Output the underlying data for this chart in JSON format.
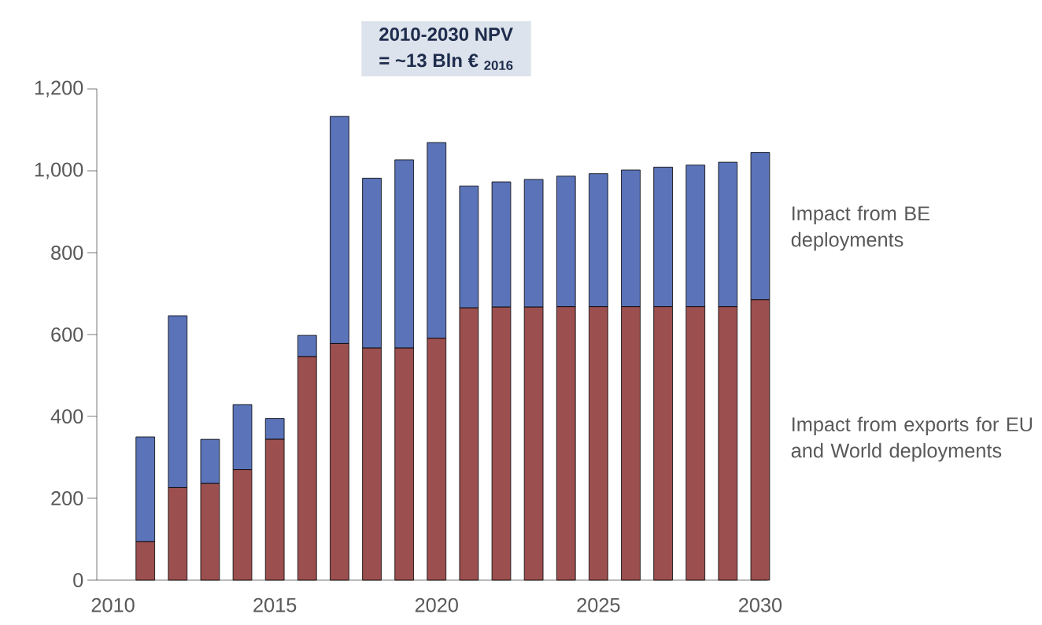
{
  "chart_data": {
    "type": "bar",
    "stacked": true,
    "title": "2010-2030 NPV",
    "subtitle": "= ~13 Bln € $_{2016}$",
    "categories": [
      "2010",
      null,
      null,
      null,
      null,
      "2015",
      null,
      null,
      null,
      null,
      "2020",
      null,
      null,
      null,
      null,
      "2025",
      null,
      null,
      null,
      null,
      "2030"
    ],
    "series": [
      {
        "name": "Impact from exports for EU and World deployments",
        "color": "#9c4f4f",
        "values": [
          null,
          94,
          226,
          236,
          270,
          344,
          546,
          578,
          567,
          567,
          591,
          665,
          667,
          667,
          668,
          668,
          668,
          668,
          668,
          668,
          685
        ]
      },
      {
        "name": "Impact from BE deployments",
        "color": "#5b73b8",
        "values": [
          null,
          256,
          420,
          108,
          159,
          51,
          52,
          555,
          415,
          460,
          478,
          298,
          306,
          312,
          319,
          325,
          334,
          341,
          346,
          353,
          360
        ]
      }
    ],
    "ylim": [
      0,
      1200
    ],
    "yticks": [
      0,
      200,
      400,
      600,
      800,
      {
        "value": 1000,
        "label": "1,000"
      },
      {
        "value": 1200,
        "label": "1,200"
      }
    ],
    "grid": false,
    "legend": false
  }
}
